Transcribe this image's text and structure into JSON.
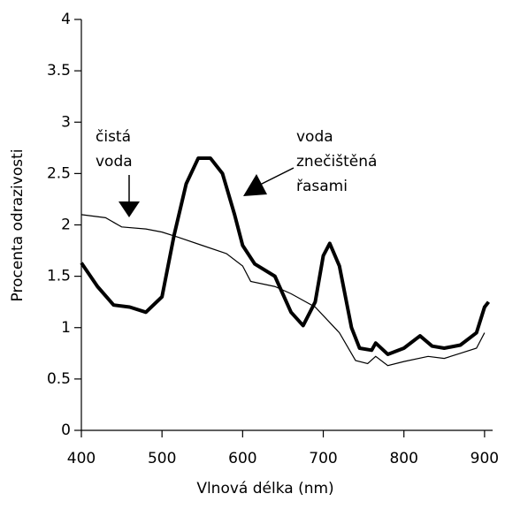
{
  "chart_data": {
    "type": "line",
    "xlabel": "Vlnová délka (nm)",
    "ylabel": "Procenta odrazivosti",
    "annotations": [
      [
        "čistá",
        "voda"
      ],
      [
        "voda",
        "znečištěná",
        "řasami"
      ]
    ],
    "xlim": [
      400,
      910
    ],
    "xticks": [
      400,
      500,
      600,
      700,
      800,
      900
    ],
    "ylim": [
      0,
      4
    ],
    "yticks": [
      0,
      0.5,
      1,
      1.5,
      2,
      2.5,
      3,
      3.5,
      4
    ],
    "series": [
      {
        "color": "#000000",
        "x": [
          400,
          430,
          450,
          480,
          500,
          520,
          550,
          580,
          600,
          610,
          640,
          660,
          690,
          720,
          740,
          755,
          765,
          780,
          800,
          830,
          850,
          870,
          890,
          900
        ],
        "values": [
          2.1,
          2.07,
          1.98,
          1.96,
          1.93,
          1.88,
          1.8,
          1.72,
          1.6,
          1.45,
          1.4,
          1.33,
          1.2,
          0.95,
          0.68,
          0.65,
          0.72,
          0.63,
          0.67,
          0.72,
          0.7,
          0.75,
          0.8,
          0.95
        ]
      },
      {
        "color": "#000000",
        "x": [
          400,
          420,
          440,
          460,
          480,
          500,
          515,
          530,
          545,
          560,
          575,
          590,
          600,
          615,
          640,
          660,
          675,
          690,
          700,
          708,
          720,
          735,
          745,
          760,
          765,
          780,
          800,
          820,
          835,
          850,
          870,
          890,
          900,
          905
        ],
        "values": [
          1.63,
          1.4,
          1.22,
          1.2,
          1.15,
          1.3,
          1.9,
          2.4,
          2.65,
          2.65,
          2.5,
          2.1,
          1.8,
          1.62,
          1.5,
          1.15,
          1.02,
          1.25,
          1.7,
          1.82,
          1.6,
          1.0,
          0.8,
          0.78,
          0.85,
          0.74,
          0.8,
          0.92,
          0.82,
          0.8,
          0.83,
          0.95,
          1.2,
          1.25
        ]
      }
    ]
  }
}
